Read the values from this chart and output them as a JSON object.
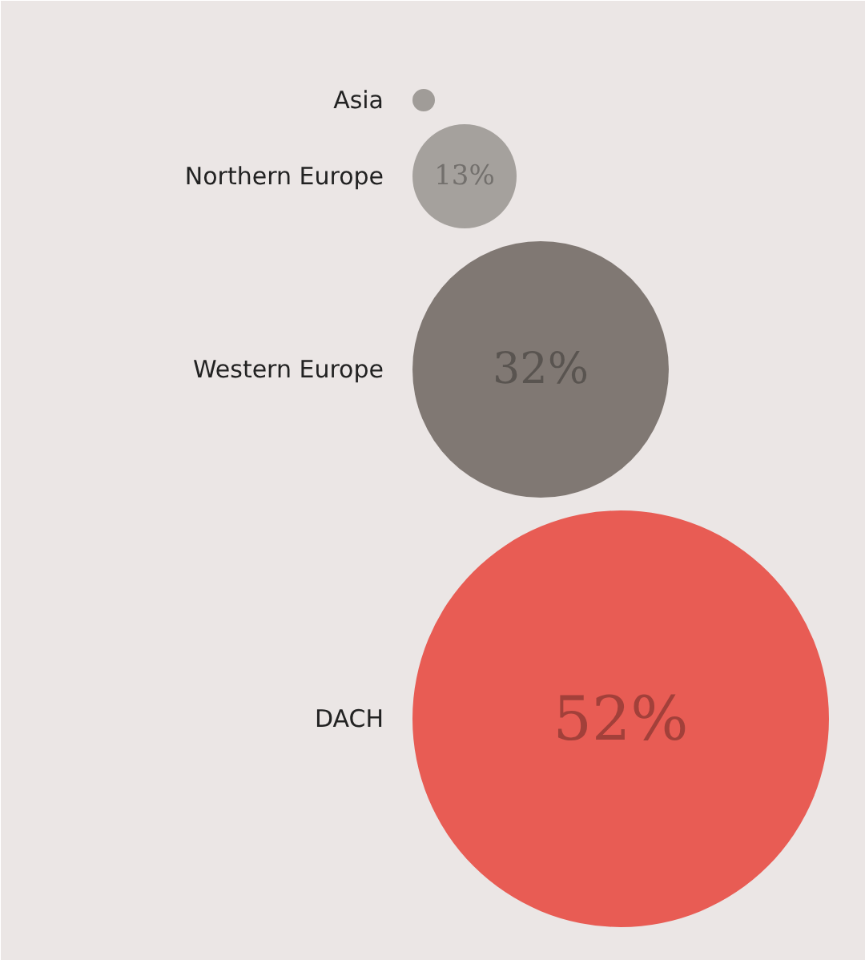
{
  "chart_data": {
    "type": "other",
    "categories": [
      "Asia",
      "Northern Europe",
      "Western Europe",
      "DACH"
    ],
    "values": [
      null,
      13,
      32,
      52
    ],
    "colors": [
      "#a09c98",
      "#a5a19d",
      "#807873",
      "#e85c54"
    ],
    "value_labels": [
      null,
      "13%",
      "32%",
      "52%"
    ]
  }
}
